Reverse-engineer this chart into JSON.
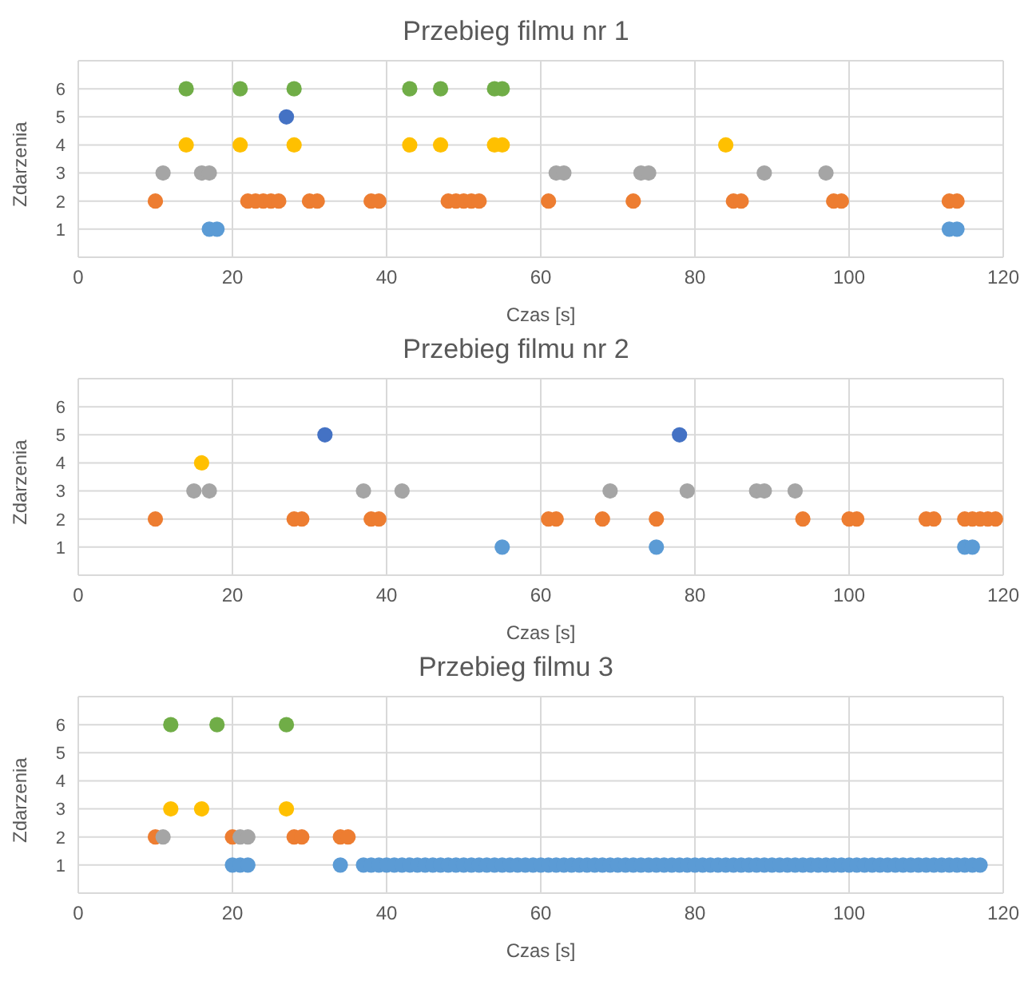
{
  "chart_data": [
    {
      "type": "scatter",
      "title": "Przebieg filmu nr 1",
      "xlabel": "Czas [s]",
      "ylabel": "Zdarzenia",
      "xlim": [
        0,
        120
      ],
      "xticks": [
        0,
        20,
        40,
        60,
        80,
        100,
        120
      ],
      "ylim": [
        0,
        7
      ],
      "yticks": [
        1,
        2,
        3,
        4,
        5,
        6
      ],
      "grid": true,
      "legend": false,
      "marker": "circle",
      "series": [
        {
          "color": "#5b9bd5",
          "x": [
            17,
            18,
            113,
            114
          ],
          "values": [
            1,
            1,
            1,
            1
          ]
        },
        {
          "color": "#ed7d31",
          "x": [
            10,
            22,
            23,
            24,
            25,
            26,
            30,
            31,
            38,
            39,
            48,
            49,
            50,
            51,
            52,
            61,
            72,
            85,
            86,
            98,
            99,
            113,
            114
          ],
          "values": [
            2,
            2,
            2,
            2,
            2,
            2,
            2,
            2,
            2,
            2,
            2,
            2,
            2,
            2,
            2,
            2,
            2,
            2,
            2,
            2,
            2,
            2,
            2
          ]
        },
        {
          "color": "#a5a5a5",
          "x": [
            11,
            16,
            17,
            62,
            63,
            73,
            74,
            89,
            97
          ],
          "values": [
            3,
            3,
            3,
            3,
            3,
            3,
            3,
            3,
            3
          ]
        },
        {
          "color": "#ffc000",
          "x": [
            14,
            21,
            28,
            43,
            47,
            54,
            55,
            84
          ],
          "values": [
            4,
            4,
            4,
            4,
            4,
            4,
            4,
            4
          ]
        },
        {
          "color": "#4472c4",
          "x": [
            27
          ],
          "values": [
            5
          ]
        },
        {
          "color": "#70ad47",
          "x": [
            14,
            21,
            28,
            43,
            47,
            54,
            55
          ],
          "values": [
            6,
            6,
            6,
            6,
            6,
            6,
            6
          ]
        }
      ]
    },
    {
      "type": "scatter",
      "title": "Przebieg filmu nr 2",
      "xlabel": "Czas [s]",
      "ylabel": "Zdarzenia",
      "xlim": [
        0,
        120
      ],
      "xticks": [
        0,
        20,
        40,
        60,
        80,
        100,
        120
      ],
      "ylim": [
        0,
        7
      ],
      "yticks": [
        1,
        2,
        3,
        4,
        5,
        6
      ],
      "grid": true,
      "legend": false,
      "marker": "circle",
      "series": [
        {
          "color": "#5b9bd5",
          "x": [
            55,
            75,
            115,
            116
          ],
          "values": [
            1,
            1,
            1,
            1
          ]
        },
        {
          "color": "#ed7d31",
          "x": [
            10,
            28,
            29,
            38,
            39,
            61,
            62,
            68,
            75,
            94,
            100,
            101,
            110,
            111,
            115,
            116,
            117,
            118,
            119
          ],
          "values": [
            2,
            2,
            2,
            2,
            2,
            2,
            2,
            2,
            2,
            2,
            2,
            2,
            2,
            2,
            2,
            2,
            2,
            2,
            2
          ]
        },
        {
          "color": "#a5a5a5",
          "x": [
            15,
            17,
            37,
            42,
            69,
            79,
            88,
            89,
            93
          ],
          "values": [
            3,
            3,
            3,
            3,
            3,
            3,
            3,
            3,
            3
          ]
        },
        {
          "color": "#ffc000",
          "x": [
            16
          ],
          "values": [
            4
          ]
        },
        {
          "color": "#4472c4",
          "x": [
            32,
            78
          ],
          "values": [
            5,
            5
          ]
        }
      ]
    },
    {
      "type": "scatter",
      "title": "Przebieg filmu 3",
      "xlabel": "Czas [s]",
      "ylabel": "Zdarzenia",
      "xlim": [
        0,
        120
      ],
      "xticks": [
        0,
        20,
        40,
        60,
        80,
        100,
        120
      ],
      "ylim": [
        0,
        7
      ],
      "yticks": [
        1,
        2,
        3,
        4,
        5,
        6
      ],
      "grid": true,
      "legend": false,
      "marker": "circle",
      "series": [
        {
          "color": "#5b9bd5",
          "x": [
            20,
            21,
            22,
            34,
            37,
            38,
            39,
            40,
            41,
            42,
            43,
            44,
            45,
            46,
            47,
            48,
            49,
            50,
            51,
            52,
            53,
            54,
            55,
            56,
            57,
            58,
            59,
            60,
            61,
            62,
            63,
            64,
            65,
            66,
            67,
            68,
            69,
            70,
            71,
            72,
            73,
            74,
            75,
            76,
            77,
            78,
            79,
            80,
            81,
            82,
            83,
            84,
            85,
            86,
            87,
            88,
            89,
            90,
            91,
            92,
            93,
            94,
            95,
            96,
            97,
            98,
            99,
            100,
            101,
            102,
            103,
            104,
            105,
            106,
            107,
            108,
            109,
            110,
            111,
            112,
            113,
            114,
            115,
            116,
            117
          ],
          "values": [
            1,
            1,
            1,
            1,
            1,
            1,
            1,
            1,
            1,
            1,
            1,
            1,
            1,
            1,
            1,
            1,
            1,
            1,
            1,
            1,
            1,
            1,
            1,
            1,
            1,
            1,
            1,
            1,
            1,
            1,
            1,
            1,
            1,
            1,
            1,
            1,
            1,
            1,
            1,
            1,
            1,
            1,
            1,
            1,
            1,
            1,
            1,
            1,
            1,
            1,
            1,
            1,
            1,
            1,
            1,
            1,
            1,
            1,
            1,
            1,
            1,
            1,
            1,
            1,
            1,
            1,
            1,
            1,
            1,
            1,
            1,
            1,
            1,
            1,
            1,
            1,
            1,
            1,
            1,
            1,
            1,
            1,
            1,
            1,
            1
          ]
        },
        {
          "color": "#ed7d31",
          "x": [
            10,
            20,
            28,
            29,
            34,
            35
          ],
          "values": [
            2,
            2,
            2,
            2,
            2,
            2
          ]
        },
        {
          "color": "#a5a5a5",
          "x": [
            11,
            21,
            22
          ],
          "values": [
            2,
            2,
            2
          ]
        },
        {
          "color": "#ffc000",
          "x": [
            12,
            16,
            27
          ],
          "values": [
            3,
            3,
            3
          ]
        },
        {
          "color": "#70ad47",
          "x": [
            12,
            18,
            27
          ],
          "values": [
            6,
            6,
            6
          ]
        }
      ]
    }
  ]
}
